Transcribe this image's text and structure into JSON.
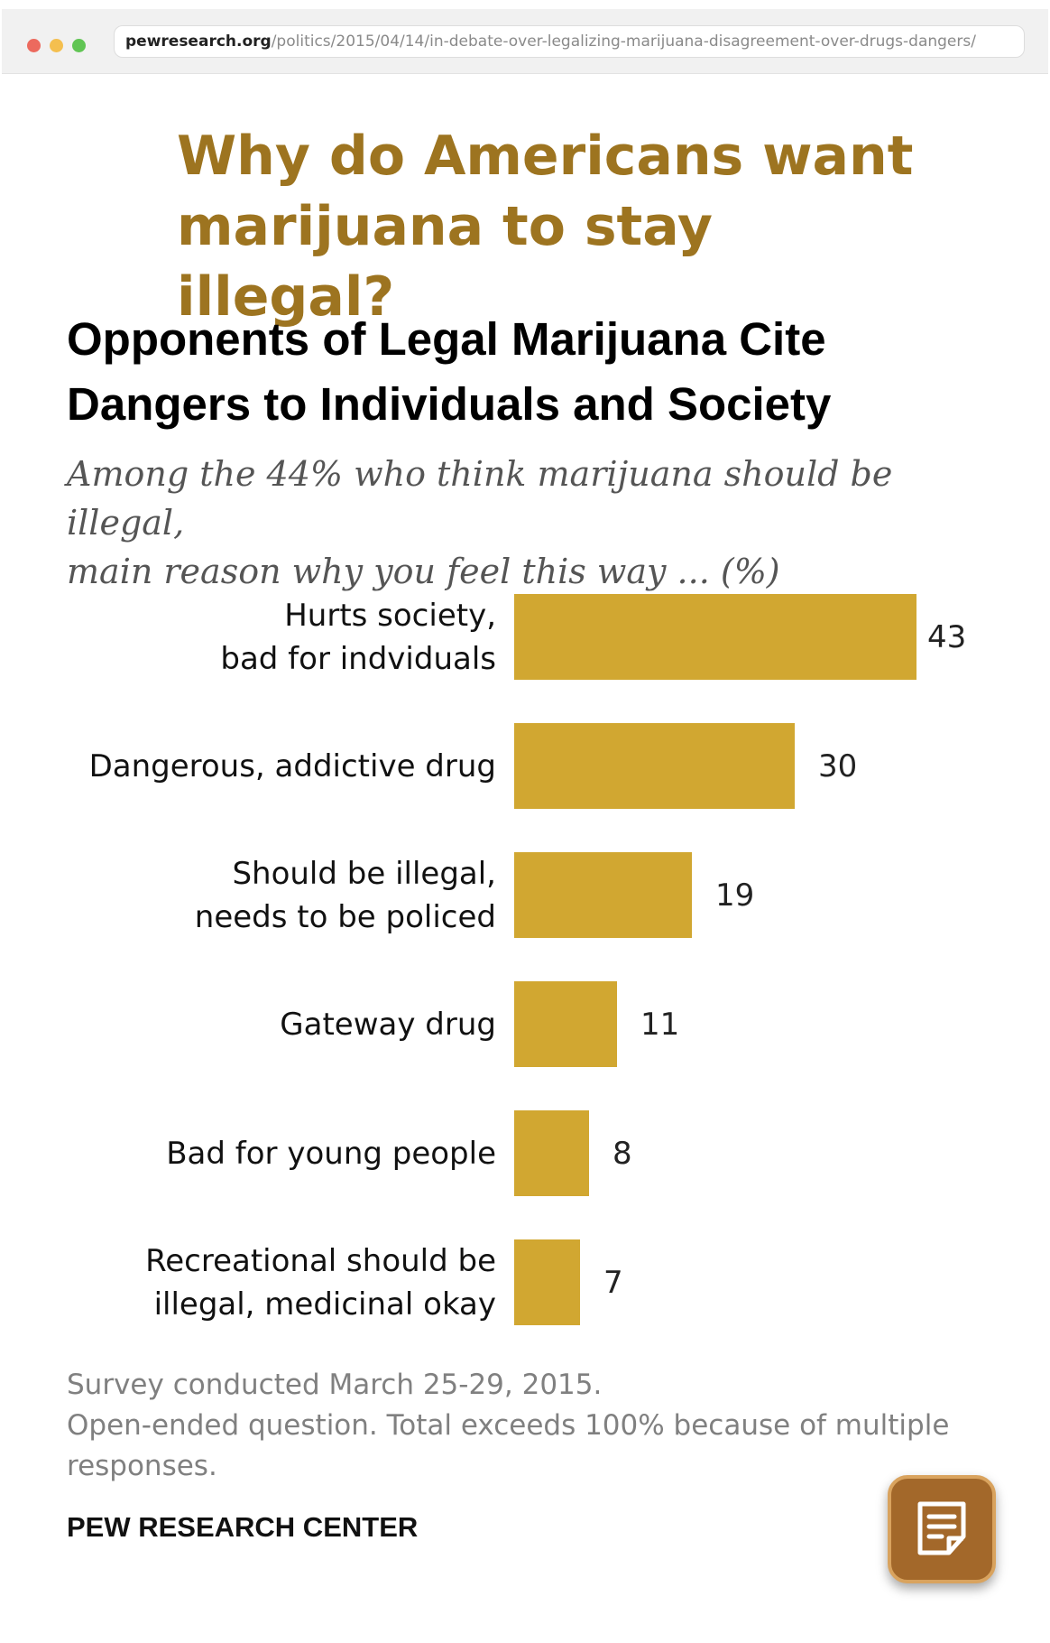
{
  "browser": {
    "url_domain": "pewresearch.org",
    "url_path": "/politics/2015/04/14/in-debate-over-legalizing-marijuana-disagreement-over-drugs-dangers/"
  },
  "headline": {
    "line1": "Why do Americans want",
    "line2": "marijuana to stay illegal?"
  },
  "chart_data": {
    "type": "bar",
    "orientation": "horizontal",
    "title": "Opponents of Legal Marijuana Cite Dangers to Individuals and Society",
    "title_lines": [
      "Opponents of Legal Marijuana Cite",
      "Dangers to Individuals and Society"
    ],
    "subtitle": "Among the 44% who think marijuana should be illegal, main reason why you feel this way ... (%)",
    "subtitle_lines": [
      "Among the 44% who think marijuana should be illegal,",
      "main reason why you feel this way ... (%)"
    ],
    "categories": [
      "Hurts society,\nbad for indviduals",
      "Dangerous, addictive drug",
      "Should be illegal,\nneeds to be policed",
      "Gateway drug",
      "Bad for young people",
      "Recreational should be\nillegal, medicinal okay"
    ],
    "values": [
      43,
      30,
      19,
      11,
      8,
      7
    ],
    "bar_color": "#d1a731",
    "xlim": [
      0,
      43
    ],
    "grid": false,
    "note_lines": [
      "Survey conducted March 25-29, 2015.",
      "Open-ended question. Total exceeds 100% because of multiple",
      "responses."
    ],
    "source": "PEW RESEARCH CENTER"
  },
  "colors": {
    "headline": "#9d7420",
    "bar": "#d1a731",
    "notes_button": "#a3682a"
  },
  "notes_button": {
    "icon": "notepad-icon"
  }
}
